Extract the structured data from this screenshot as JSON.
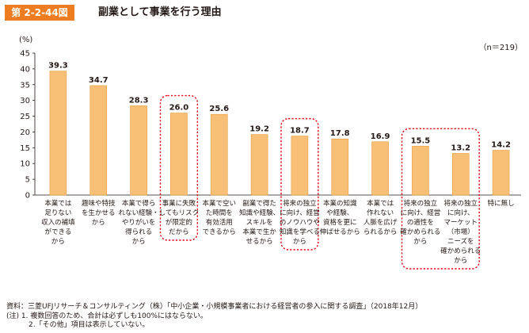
{
  "figure": {
    "number": "第 2-2-44図",
    "title": "副業として事業を行う理由"
  },
  "chart_data": {
    "type": "bar",
    "unit_label": "(%)",
    "sample_label": "（n＝219）",
    "ylim": [
      0,
      45
    ],
    "yticks": [
      0,
      5,
      10,
      15,
      20,
      25,
      30,
      35,
      40,
      45
    ],
    "categories": [
      [
        "本業では",
        "足りない",
        "収入の補填",
        "ができる",
        "から"
      ],
      [
        "趣味や特技",
        "を生かせる",
        "から"
      ],
      [
        "本業で得ら",
        "れない経験・",
        "やりがいを",
        "得られる",
        "から"
      ],
      [
        "事業に失敗",
        "してもリスク",
        "が限定的",
        "だから"
      ],
      [
        "本業で空い",
        "た時間を",
        "有効活用",
        "できるから"
      ],
      [
        "副業で得た",
        "知識や経験、",
        "スキルを",
        "本業で生か",
        "せるから"
      ],
      [
        "将来の独立",
        "に向け、経営",
        "のノウハウや",
        "知識を学べる",
        "から"
      ],
      [
        "本業の知識",
        "や経験、",
        "資格を更に",
        "伸ばせるから"
      ],
      [
        "本業では",
        "作れない",
        "人脈を広げ",
        "られるから"
      ],
      [
        "将来の独立",
        "に向け、経営",
        "の適性を",
        "確かめられる",
        "から"
      ],
      [
        "将来の独立",
        "に向け、",
        "マーケット",
        "（市場）",
        "ニーズを",
        "確かめられる",
        "から"
      ],
      [
        "特に無し"
      ]
    ],
    "values": [
      39.3,
      34.7,
      28.3,
      26.0,
      25.6,
      19.2,
      18.7,
      17.8,
      16.9,
      15.5,
      13.2,
      14.2
    ],
    "value_labels": [
      "39.3",
      "34.7",
      "28.3",
      "26.0",
      "25.6",
      "19.2",
      "18.7",
      "17.8",
      "16.9",
      "15.5",
      "13.2",
      "14.2"
    ],
    "highlight_groups": [
      [
        3
      ],
      [
        6
      ],
      [
        9,
        10
      ]
    ],
    "bar_color": "#f8c077",
    "bar_edge_color": "#e59a3c",
    "highlight_color": "#e60012",
    "grid": false
  },
  "notes": [
    "資料：三菱UFJリサーチ＆コンサルティング（株）「中小企業・小規模事業者における経営者の参入に関する調査」（2018年12月）",
    "(注) 1. 複数回答のため、合計は必ずしも100%にはならない。",
    "2.「その他」項目は表示していない。"
  ]
}
